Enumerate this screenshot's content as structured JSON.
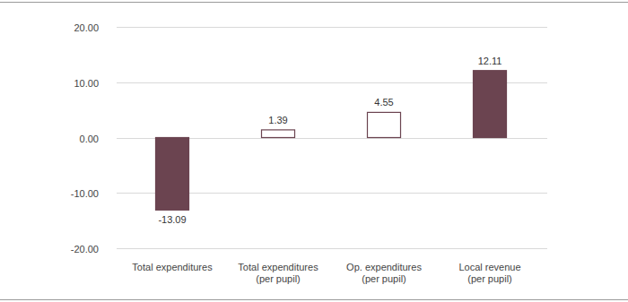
{
  "chart_data": {
    "type": "bar",
    "categories": [
      "Total expenditures",
      "Total expenditures (per pupil)",
      "Op. expenditures (per pupil)",
      "Local revenue (per pupil)"
    ],
    "values": [
      -13.09,
      1.39,
      4.55,
      12.11
    ],
    "color": "#6b4450",
    "colors": [
      "#6b4450",
      "#ffffff",
      "#ffffff",
      "#6b4450"
    ],
    "ylim": [
      -20,
      20
    ],
    "yticks": [
      {
        "value": -20,
        "label": "-20.00"
      },
      {
        "value": -10,
        "label": "-10.00"
      },
      {
        "value": 0,
        "label": "0.00"
      },
      {
        "value": 10,
        "label": "10.00"
      },
      {
        "value": 20,
        "label": "20.00"
      }
    ],
    "grid": true,
    "data_labels": true
  }
}
